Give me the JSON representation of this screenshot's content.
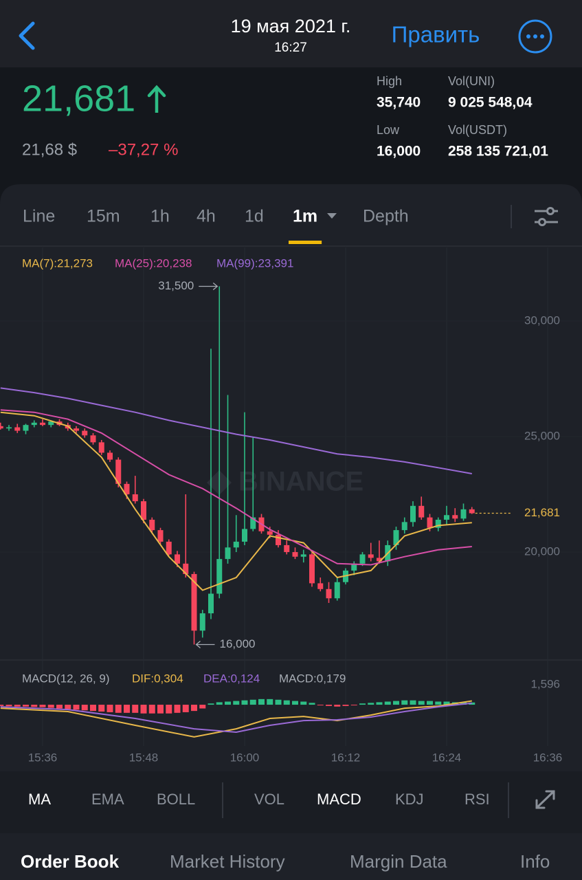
{
  "header": {
    "date": "19 мая 2021 г.",
    "time": "16:27",
    "edit": "Править"
  },
  "ticker": {
    "price": "21,681",
    "usd": "21,68 $",
    "change": "–37,27 %",
    "stats": [
      {
        "label": "High",
        "value": "35,740"
      },
      {
        "label": "Vol(UNI)",
        "value": "9 025 548,04"
      },
      {
        "label": "Low",
        "value": "16,000"
      },
      {
        "label": "Vol(USDT)",
        "value": "258 135 721,01"
      }
    ]
  },
  "intervals": {
    "items": [
      "Line",
      "15m",
      "1h",
      "4h",
      "1d",
      "1m",
      "Depth"
    ],
    "active": 5
  },
  "chart_data": [
    {
      "type": "candlestick",
      "watermark": "BINANCE",
      "x": [
        "15:31",
        "15:32",
        "15:33",
        "15:34",
        "15:35",
        "15:36",
        "15:37",
        "15:38",
        "15:39",
        "15:40",
        "15:41",
        "15:42",
        "15:43",
        "15:44",
        "15:45",
        "15:46",
        "15:47",
        "15:48",
        "15:49",
        "15:50",
        "15:51",
        "15:52",
        "15:53",
        "15:54",
        "15:55",
        "15:56",
        "15:57",
        "15:58",
        "15:59",
        "16:00",
        "16:01",
        "16:02",
        "16:03",
        "16:04",
        "16:05",
        "16:06",
        "16:07",
        "16:08",
        "16:09",
        "16:10",
        "16:11",
        "16:12",
        "16:13",
        "16:14",
        "16:15",
        "16:16",
        "16:17",
        "16:18",
        "16:19",
        "16:20",
        "16:21",
        "16:22",
        "16:23",
        "16:24",
        "16:25",
        "16:26",
        "16:27"
      ],
      "open": [
        25.45,
        25.35,
        25.4,
        25.25,
        25.5,
        25.6,
        25.5,
        25.65,
        25.5,
        25.35,
        25.25,
        25.05,
        24.75,
        24.3,
        24.0,
        22.95,
        22.5,
        22.2,
        21.4,
        20.95,
        20.45,
        19.9,
        19.5,
        19.05,
        16.6,
        17.35,
        18.2,
        19.7,
        20.2,
        20.45,
        21.0,
        21.5,
        20.9,
        20.75,
        20.3,
        20.0,
        19.8,
        19.9,
        18.65,
        18.4,
        18.0,
        18.7,
        19.2,
        19.5,
        19.9,
        19.75,
        19.6,
        20.3,
        20.95,
        21.3,
        22.0,
        21.5,
        21.05,
        21.4,
        21.6,
        21.45,
        21.85
      ],
      "high": [
        25.6,
        25.5,
        25.55,
        25.55,
        25.7,
        25.75,
        25.7,
        25.75,
        25.6,
        25.45,
        25.35,
        25.15,
        24.85,
        24.4,
        24.1,
        23.05,
        23.3,
        22.3,
        21.5,
        21.05,
        20.55,
        20.05,
        22.5,
        19.15,
        17.5,
        28.8,
        31.5,
        26.8,
        21.6,
        26.05,
        25.0,
        21.65,
        21.1,
        20.95,
        20.5,
        20.2,
        20.1,
        20.0,
        18.9,
        18.7,
        18.9,
        19.3,
        19.6,
        20.0,
        20.4,
        20.5,
        20.5,
        21.1,
        21.5,
        22.2,
        22.4,
        21.65,
        21.5,
        22.0,
        21.9,
        22.1,
        21.95
      ],
      "low": [
        25.3,
        25.25,
        25.15,
        25.1,
        25.4,
        25.45,
        25.4,
        25.45,
        25.25,
        25.15,
        24.95,
        24.65,
        24.2,
        23.9,
        22.8,
        22.3,
        22.1,
        21.25,
        20.8,
        20.35,
        19.85,
        19.35,
        18.9,
        16.0,
        16.3,
        17.1,
        18.0,
        19.5,
        20.0,
        20.3,
        20.9,
        20.8,
        20.6,
        20.2,
        19.9,
        19.7,
        19.55,
        18.5,
        18.3,
        17.8,
        17.9,
        18.6,
        19.0,
        19.4,
        19.6,
        19.5,
        19.4,
        20.1,
        20.8,
        21.1,
        21.4,
        20.9,
        20.9,
        21.2,
        21.3,
        21.35,
        21.65
      ],
      "close": [
        25.35,
        25.4,
        25.25,
        25.5,
        25.6,
        25.5,
        25.65,
        25.5,
        25.35,
        25.25,
        25.05,
        24.75,
        24.3,
        24.0,
        22.95,
        22.5,
        22.2,
        21.4,
        20.95,
        20.45,
        19.9,
        19.5,
        19.05,
        16.6,
        17.35,
        18.2,
        19.7,
        20.2,
        20.45,
        21.0,
        21.5,
        20.9,
        20.75,
        20.3,
        20.0,
        19.8,
        19.9,
        18.65,
        18.4,
        18.0,
        18.7,
        19.2,
        19.5,
        19.9,
        19.75,
        19.6,
        20.3,
        20.95,
        21.3,
        22.0,
        21.5,
        21.05,
        21.4,
        21.6,
        21.45,
        21.85,
        21.681
      ],
      "up_color": "#2ebd85",
      "down_color": "#f6465d",
      "series": [
        {
          "name": "MA(7):21,273",
          "color": "#e9b84a",
          "x": [
            "15:31",
            "15:35",
            "15:39",
            "15:43",
            "15:47",
            "15:51",
            "15:55",
            "15:59",
            "16:03",
            "16:07",
            "16:11",
            "16:15",
            "16:19",
            "16:23",
            "16:27"
          ],
          "values": [
            26.05,
            25.9,
            25.45,
            24.1,
            21.85,
            19.8,
            18.35,
            18.9,
            20.7,
            20.4,
            18.9,
            19.2,
            20.7,
            21.15,
            21.273
          ]
        },
        {
          "name": "MA(25):20,238",
          "color": "#d84fa8",
          "x": [
            "15:31",
            "15:35",
            "15:39",
            "15:43",
            "15:47",
            "15:51",
            "15:55",
            "15:59",
            "16:03",
            "16:07",
            "16:11",
            "16:15",
            "16:19",
            "16:23",
            "16:27"
          ],
          "values": [
            26.15,
            26.05,
            25.75,
            25.15,
            24.25,
            23.35,
            22.75,
            21.9,
            20.98,
            20.25,
            19.5,
            19.45,
            19.8,
            20.1,
            20.238
          ]
        },
        {
          "name": "MA(99):23,391",
          "color": "#9a6ad6",
          "x": [
            "15:31",
            "15:35",
            "15:39",
            "15:43",
            "15:47",
            "15:51",
            "15:55",
            "15:59",
            "16:03",
            "16:07",
            "16:11",
            "16:15",
            "16:19",
            "16:23",
            "16:27"
          ],
          "values": [
            27.1,
            26.9,
            26.65,
            26.35,
            26.05,
            25.7,
            25.4,
            25.1,
            24.85,
            24.55,
            24.25,
            24.1,
            23.9,
            23.65,
            23.391
          ]
        }
      ],
      "ylim": [
        15.33,
        33.18
      ],
      "yticks": [
        {
          "value": 20,
          "label": "20,000"
        },
        {
          "value": 25,
          "label": "25,000"
        },
        {
          "value": 30,
          "label": "30,000"
        }
      ],
      "xticks": [
        "15:36",
        "15:48",
        "16:00",
        "16:12",
        "16:24",
        "16:36"
      ],
      "grid": true,
      "last_price": {
        "value": 21.681,
        "label": "21,681",
        "color": "#e9b84a"
      },
      "annotations": [
        {
          "x": "15:57",
          "value": 31.5,
          "label": "31,500"
        },
        {
          "x": "15:54",
          "value": 16,
          "label": "16,000"
        }
      ]
    },
    {
      "type": "macd",
      "title": "MACD(12, 26, 9)",
      "name": "MACD:0,179",
      "x": [
        "15:31",
        "15:32",
        "15:33",
        "15:34",
        "15:35",
        "15:36",
        "15:37",
        "15:38",
        "15:39",
        "15:40",
        "15:41",
        "15:42",
        "15:43",
        "15:44",
        "15:45",
        "15:46",
        "15:47",
        "15:48",
        "15:49",
        "15:50",
        "15:51",
        "15:52",
        "15:53",
        "15:54",
        "15:55",
        "15:56",
        "15:57",
        "15:58",
        "15:59",
        "16:00",
        "16:01",
        "16:02",
        "16:03",
        "16:04",
        "16:05",
        "16:06",
        "16:07",
        "16:08",
        "16:09",
        "16:10",
        "16:11",
        "16:12",
        "16:13",
        "16:14",
        "16:15",
        "16:16",
        "16:17",
        "16:18",
        "16:19",
        "16:20",
        "16:21",
        "16:22",
        "16:23",
        "16:24",
        "16:25",
        "16:26",
        "16:27"
      ],
      "values": [
        -0.1,
        -0.12,
        -0.15,
        -0.15,
        -0.18,
        -0.2,
        -0.25,
        -0.3,
        -0.35,
        -0.4,
        -0.45,
        -0.5,
        -0.55,
        -0.6,
        -0.65,
        -0.65,
        -0.65,
        -0.7,
        -0.7,
        -0.7,
        -0.7,
        -0.65,
        -0.6,
        -0.5,
        -0.3,
        0.1,
        0.2,
        0.25,
        0.3,
        0.35,
        0.4,
        0.45,
        0.45,
        0.4,
        0.35,
        0.3,
        0.25,
        0.15,
        -0.05,
        -0.1,
        -0.15,
        -0.1,
        -0.05,
        0.1,
        0.15,
        0.2,
        0.25,
        0.3,
        0.35,
        0.35,
        0.3,
        0.3,
        0.25,
        0.25,
        0.2,
        0.2,
        0.179
      ],
      "up_color": "#2ebd85",
      "down_color": "#f6465d",
      "series": [
        {
          "name": "DIF:0,304",
          "color": "#e9b84a",
          "x": [
            "15:31",
            "15:39",
            "15:47",
            "15:54",
            "15:59",
            "16:03",
            "16:07",
            "16:11",
            "16:15",
            "16:19",
            "16:23",
            "16:27"
          ],
          "values": [
            -0.28,
            -0.55,
            -1.65,
            -2.58,
            -1.93,
            -1.1,
            -0.94,
            -1.27,
            -0.83,
            -0.28,
            -0.11,
            0.304
          ]
        },
        {
          "name": "DEA:0,124",
          "color": "#9a6ad6",
          "x": [
            "15:31",
            "15:39",
            "15:47",
            "15:54",
            "15:59",
            "16:03",
            "16:07",
            "16:11",
            "16:15",
            "16:19",
            "16:23",
            "16:27"
          ],
          "values": [
            -0.17,
            -0.39,
            -1.1,
            -1.93,
            -2.2,
            -1.65,
            -1.27,
            -1.21,
            -0.99,
            -0.55,
            -0.17,
            0.124
          ]
        }
      ],
      "ylim": [
        -3.3,
        3.58
      ],
      "yticks": [
        {
          "value": 1.596,
          "label": "1,596"
        }
      ]
    }
  ],
  "indicators": {
    "main": [
      "MA",
      "EMA",
      "BOLL"
    ],
    "sub": [
      "VOL",
      "MACD",
      "KDJ",
      "RSI"
    ],
    "active_main": 0,
    "active_sub": 1
  },
  "bottom_tabs": {
    "items": [
      "Order Book",
      "Market History",
      "Margin Data",
      "Info"
    ],
    "active": 0
  }
}
